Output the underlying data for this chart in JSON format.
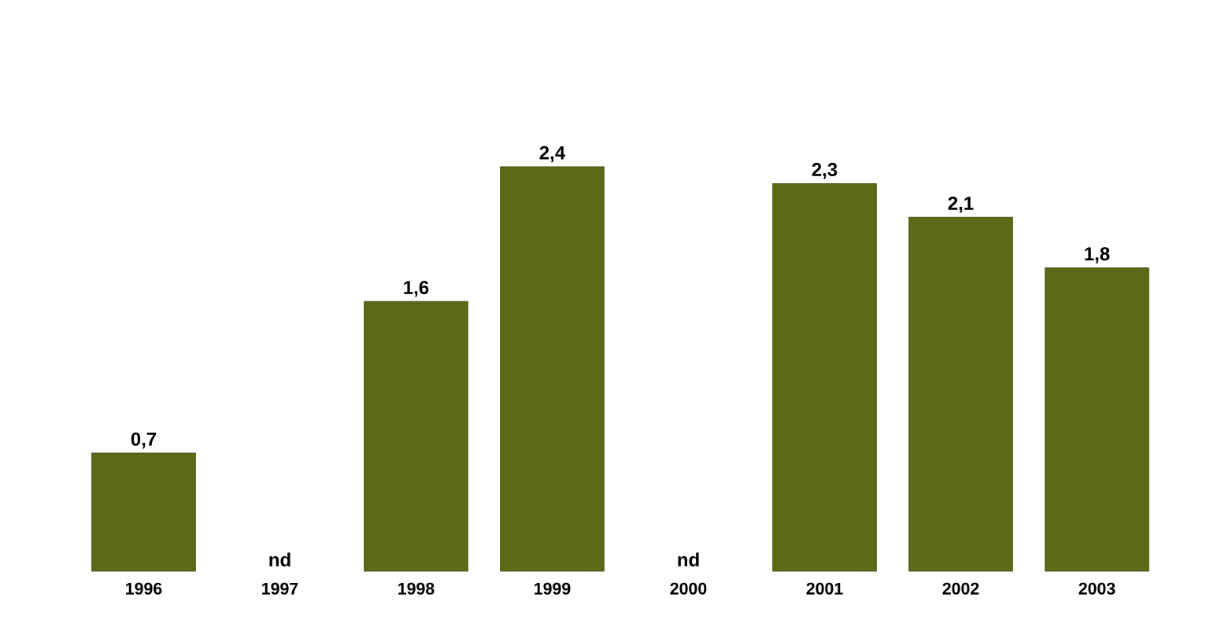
{
  "chart_data": {
    "type": "bar",
    "categories": [
      "1996",
      "1997",
      "1998",
      "1999",
      "2000",
      "2001",
      "2002",
      "2003"
    ],
    "values": [
      0.7,
      null,
      1.6,
      2.4,
      null,
      2.3,
      2.1,
      1.8
    ],
    "value_labels": [
      "0,7",
      "nd",
      "1,6",
      "2,4",
      "nd",
      "2,3",
      "2,1",
      "1,8"
    ],
    "color": "#5b6a14"
  }
}
